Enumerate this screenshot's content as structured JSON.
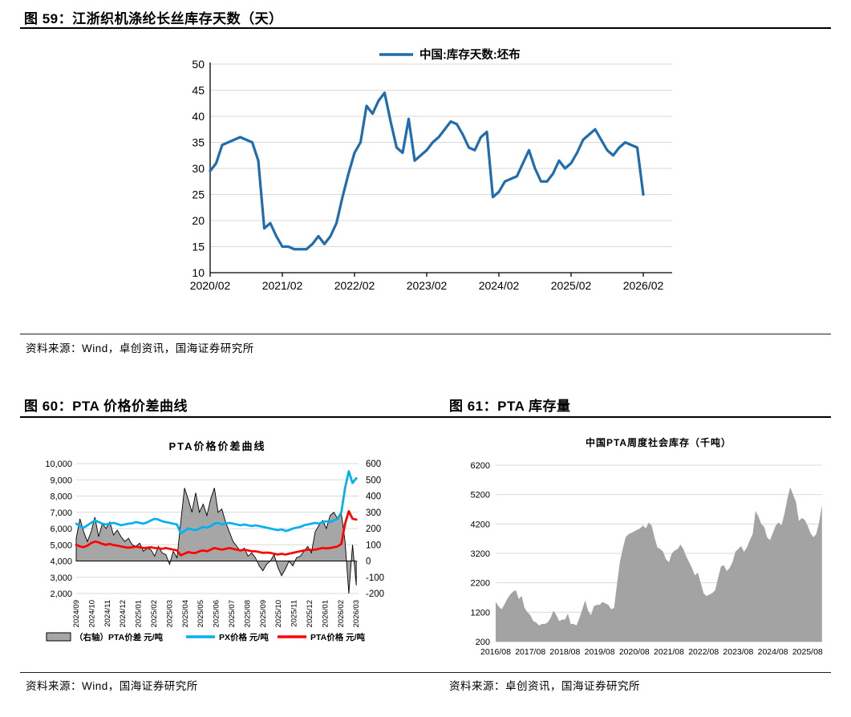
{
  "fig59": {
    "title": "图 59：江浙织机涤纶长丝库存天数（天）",
    "source": "资料来源：Wind，卓创资讯，国海证券研究所"
  },
  "fig60": {
    "title": "图 60：PTA 价格价差曲线",
    "source": "资料来源：Wind，国海证券研究所"
  },
  "fig61": {
    "title": "图 61：PTA 库存量",
    "source": "资料来源：卓创资讯，国海证券研究所"
  },
  "chart_data": [
    {
      "id": "fig59",
      "type": "line",
      "title": "",
      "legend": "中国:库存天数:坯布",
      "legend_position": "top-center",
      "line_color": "#1F6CAE",
      "grid": "horizontal",
      "ylim": [
        10,
        50
      ],
      "y_ticks": [
        10,
        15,
        20,
        25,
        30,
        35,
        40,
        45,
        50
      ],
      "x_tick_labels": [
        "2020/02",
        "2021/02",
        "2022/02",
        "2023/02",
        "2024/02",
        "2025/02",
        "2026/02"
      ],
      "x_tick_every_months": 12,
      "x_start": "2020/02",
      "values": [
        29.5,
        31,
        34.5,
        35,
        35.5,
        36,
        35.5,
        35,
        31.5,
        18.5,
        19.5,
        17,
        15,
        15,
        14.5,
        14.5,
        14.5,
        15.5,
        17,
        15.5,
        17,
        19.5,
        24.5,
        29,
        33,
        35,
        42,
        40.5,
        43,
        44.5,
        39,
        34,
        33,
        39.5,
        31.5,
        32.5,
        33.5,
        35,
        36,
        37.5,
        39,
        38.5,
        36.5,
        34,
        33.5,
        36,
        37,
        24.5,
        25.5,
        27.5,
        28,
        28.5,
        31,
        33.5,
        30,
        27.5,
        27.5,
        29,
        31.5,
        30,
        31,
        33,
        35.5,
        36.5,
        37.5,
        35.5,
        33.5,
        32.5,
        34,
        35,
        34.5,
        34,
        25
      ]
    },
    {
      "id": "fig60",
      "type": "combo-area-line",
      "title": "PTA价格价差曲线",
      "left_ylim": [
        2000,
        10000
      ],
      "left_tick_labels": [
        "10,000",
        "9,000",
        "8,000",
        "7,000",
        "6,000",
        "5,000",
        "4,000",
        "3,000",
        "2,000"
      ],
      "right_ylim": [
        -200,
        600
      ],
      "right_tick_labels": [
        "600",
        "500",
        "400",
        "300",
        "200",
        "100",
        "0",
        "-100",
        "-200"
      ],
      "x_tick_labels": [
        "2024/09",
        "2024/10",
        "2024/11",
        "2024/12",
        "2025/01",
        "2025/02",
        "2025/03",
        "2025/04",
        "2025/05",
        "2025/06",
        "2025/07",
        "2025/08",
        "2025/09",
        "2025/10",
        "2025/11",
        "2025/12",
        "2026/01",
        "2026/02",
        "2026/03"
      ],
      "grid": "horizontal",
      "legend_position": "bottom",
      "series": [
        {
          "name": "（右轴）PTA价差 元/吨",
          "type": "area",
          "axis": "right",
          "fill": "#A6A6A6",
          "stroke": "#000000",
          "values": [
            140,
            260,
            180,
            120,
            180,
            270,
            150,
            230,
            200,
            240,
            160,
            190,
            150,
            120,
            140,
            100,
            90,
            110,
            60,
            80,
            70,
            30,
            90,
            50,
            40,
            -20,
            60,
            20,
            240,
            450,
            380,
            300,
            420,
            300,
            350,
            280,
            380,
            450,
            300,
            320,
            240,
            180,
            120,
            90,
            60,
            80,
            30,
            50,
            20,
            -30,
            -60,
            -20,
            0,
            40,
            -40,
            -90,
            -50,
            0,
            -30,
            20,
            30,
            60,
            90,
            50,
            180,
            220,
            250,
            200,
            280,
            300,
            260,
            290,
            120,
            -200,
            100,
            -150
          ]
        },
        {
          "name": "PX价格 元/吨",
          "type": "line",
          "axis": "left",
          "color": "#00B0F0",
          "values": [
            6300,
            6150,
            6050,
            6200,
            6350,
            6500,
            6400,
            6300,
            6250,
            6300,
            6350,
            6280,
            6200,
            6250,
            6300,
            6320,
            6400,
            6350,
            6300,
            6380,
            6500,
            6600,
            6550,
            6450,
            6400,
            6350,
            6300,
            6250,
            5700,
            5850,
            6000,
            5950,
            5900,
            6000,
            6100,
            6050,
            6150,
            6300,
            6350,
            6250,
            6300,
            6350,
            6300,
            6250,
            6200,
            6250,
            6200,
            6150,
            6200,
            6150,
            6100,
            6050,
            6000,
            5950,
            5900,
            5950,
            5850,
            5900,
            6000,
            6050,
            6100,
            6200,
            6250,
            6300,
            6350,
            6300,
            6400,
            6450,
            6400,
            6500,
            6600,
            7000,
            8500,
            9530,
            8800,
            9100
          ]
        },
        {
          "name": "PTA价格 元/吨",
          "type": "line",
          "axis": "left",
          "color": "#FF0000",
          "values": [
            5000,
            4900,
            4850,
            4950,
            5100,
            5200,
            5150,
            5050,
            5000,
            5050,
            4980,
            4950,
            4900,
            4850,
            4820,
            4850,
            4880,
            4850,
            4800,
            4820,
            4850,
            4800,
            4780,
            4750,
            4800,
            4750,
            4700,
            4650,
            4350,
            4450,
            4550,
            4500,
            4500,
            4600,
            4650,
            4600,
            4700,
            4800,
            4750,
            4700,
            4750,
            4800,
            4750,
            4700,
            4650,
            4700,
            4650,
            4600,
            4600,
            4550,
            4500,
            4520,
            4500,
            4450,
            4400,
            4450,
            4400,
            4450,
            4500,
            4550,
            4600,
            4650,
            4700,
            4680,
            4700,
            4750,
            4800,
            4780,
            4800,
            4850,
            4900,
            5050,
            6300,
            7070,
            6600,
            6550
          ]
        }
      ]
    },
    {
      "id": "fig61",
      "type": "area",
      "title": "中国PTA周度社会库存（千吨）",
      "fill": "#A3A3A3",
      "grid": "horizontal",
      "ylim": [
        200,
        6200
      ],
      "y_ticks": [
        200,
        1200,
        2200,
        3200,
        4200,
        5200,
        6200
      ],
      "x_tick_labels": [
        "2016/08",
        "2017/08",
        "2018/08",
        "2019/08",
        "2020/08",
        "2021/08",
        "2022/08",
        "2023/08",
        "2024/08",
        "2025/08"
      ],
      "x_start": "2016/08",
      "values": [
        1550,
        1400,
        1300,
        1450,
        1650,
        1800,
        1900,
        1950,
        1650,
        1750,
        1350,
        1200,
        1100,
        900,
        850,
        750,
        800,
        800,
        850,
        1000,
        1250,
        1100,
        900,
        950,
        950,
        1150,
        800,
        800,
        750,
        1000,
        1300,
        1600,
        1250,
        1100,
        1400,
        1450,
        1450,
        1550,
        1500,
        1450,
        1300,
        1350,
        2150,
        2900,
        3350,
        3750,
        3850,
        3900,
        3950,
        4000,
        4050,
        4150,
        4050,
        4250,
        4150,
        3750,
        3400,
        3350,
        3250,
        3000,
        2900,
        3200,
        3300,
        3350,
        3500,
        3350,
        3100,
        2900,
        2700,
        2450,
        2550,
        2200,
        1850,
        1750,
        1800,
        1850,
        1950,
        2350,
        2750,
        2800,
        2600,
        2700,
        2900,
        3250,
        3350,
        3450,
        3250,
        3400,
        3650,
        3850,
        4650,
        4450,
        4200,
        4100,
        3750,
        3650,
        3900,
        4150,
        4250,
        4150,
        4550,
        5050,
        5450,
        5200,
        4950,
        4300,
        4400,
        4350,
        4150,
        3900,
        3750,
        3850,
        4250,
        4850
      ]
    }
  ]
}
